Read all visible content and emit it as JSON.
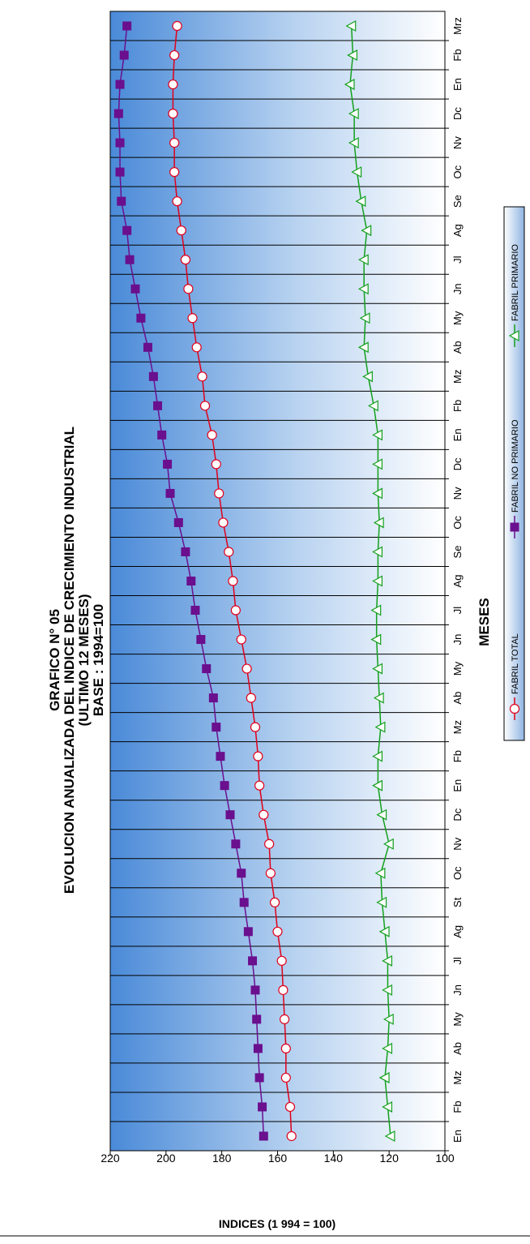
{
  "chart_data": {
    "type": "line",
    "title": "GRAFICO N° 05",
    "subtitle": "EVOLUCION ANUALIZADA DEL INDICE DE CRECIMIENTO INDUSTRIAL",
    "subtitle2": "(ULTIMO 12 MESES)",
    "subtitle3": "BASE : 1994=100",
    "xlabel": "MESES",
    "ylabel": "INDICES (1 994 = 100)",
    "ylim": [
      100,
      220
    ],
    "yticks": [
      "100",
      "120",
      "140",
      "160",
      "180",
      "200",
      "220"
    ],
    "categories": [
      "En",
      "Fb",
      "Mz",
      "Ab",
      "My",
      "Jn",
      "Jl",
      "Ag",
      "St",
      "Oc",
      "Nv",
      "Dc",
      "En",
      "Fb",
      "Mz",
      "Ab",
      "My",
      "Jn",
      "Jl",
      "Ag",
      "Se",
      "Oc",
      "Nv",
      "Dc",
      "En",
      "Fb",
      "Mz",
      "Ab",
      "My",
      "Jn",
      "Jl",
      "Ag",
      "Se",
      "Oc",
      "Nv",
      "Dc",
      "En",
      "Fb",
      "Mrz"
    ],
    "series": [
      {
        "name": "FABRIL TOTAL",
        "color": "#e0001a",
        "marker": "circle",
        "values": [
          155,
          155.5,
          157,
          157,
          157.5,
          158,
          158.5,
          160,
          161,
          162.5,
          163,
          165,
          166.5,
          167,
          168,
          169.5,
          171,
          173,
          175,
          176,
          177.5,
          179.5,
          181,
          182,
          183.5,
          186,
          187,
          189,
          190.5,
          192,
          193,
          194.5,
          196,
          197,
          197,
          197.5,
          197.5,
          197,
          196
        ]
      },
      {
        "name": "FABRIL NO PRIMARIO",
        "color": "#6a0f8e",
        "marker": "square",
        "values": [
          165,
          165.5,
          166.5,
          167,
          167.5,
          168,
          169,
          170.5,
          172,
          173,
          175,
          177,
          179,
          180.5,
          182,
          183,
          185.5,
          187.5,
          189.5,
          191,
          193,
          195.5,
          198.5,
          199.5,
          201.5,
          203,
          204.5,
          206.5,
          209,
          211,
          213,
          214,
          216,
          216.5,
          216.5,
          217,
          216.5,
          215,
          214
        ]
      },
      {
        "name": "FABRIL PRIMARIO",
        "color": "#14a01e",
        "marker": "triangle",
        "values": [
          119.5,
          120.5,
          121.5,
          120.5,
          120,
          120.5,
          120.5,
          121.5,
          122.5,
          123,
          120,
          122.5,
          124,
          124,
          123,
          123.5,
          124,
          124.5,
          124.5,
          124,
          124,
          123.5,
          124,
          124,
          124,
          125.5,
          127.5,
          129,
          128.5,
          129,
          129,
          128,
          130,
          131.5,
          132.5,
          132.5,
          134,
          133,
          133.5
        ]
      }
    ],
    "legend_position": "bottom",
    "grid": "vertical"
  }
}
